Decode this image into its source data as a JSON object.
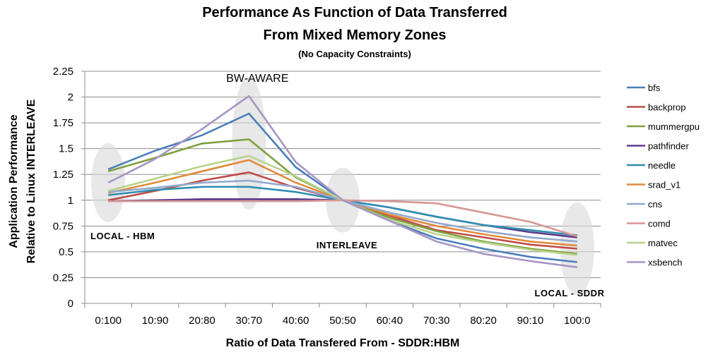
{
  "chart_data": {
    "type": "line",
    "title": "Performance As Function of Data Transferred",
    "title_line2": "From Mixed Memory Zones",
    "subtitle": "(No Capacity Constraints)",
    "ylabel": "Application Performance",
    "ylabel_line2": "Relative to Linux INTERLEAVE",
    "xlabel": "Ratio of Data Transfered From - SDDR:HBM",
    "ylim": [
      0,
      2.25
    ],
    "yticks": [
      0,
      0.25,
      0.5,
      0.75,
      1,
      1.25,
      1.5,
      1.75,
      2,
      2.25
    ],
    "ytick_labels": [
      "0",
      "0.25",
      "0.5",
      "0.75",
      "1",
      "1.25",
      "1.5",
      "1.75",
      "2",
      "2.25"
    ],
    "categories": [
      "0:100",
      "10:90",
      "20:80",
      "30:70",
      "40:60",
      "50:50",
      "60:40",
      "70:30",
      "80:20",
      "90:10",
      "100:0"
    ],
    "grid": true,
    "legend_position": "right",
    "series": [
      {
        "name": "bfs",
        "color": "#4a7ebb",
        "values": [
          1.3,
          1.48,
          1.63,
          1.84,
          1.32,
          1.0,
          0.8,
          0.63,
          0.53,
          0.45,
          0.4
        ]
      },
      {
        "name": "backprop",
        "color": "#be4b48",
        "values": [
          1.0,
          1.09,
          1.19,
          1.27,
          1.12,
          1.0,
          0.85,
          0.71,
          0.64,
          0.57,
          0.53
        ]
      },
      {
        "name": "mummergpu",
        "color": "#7f9f3e",
        "values": [
          1.28,
          1.41,
          1.55,
          1.59,
          1.22,
          1.0,
          0.83,
          0.7,
          0.6,
          0.53,
          0.48
        ]
      },
      {
        "name": "pathfinder",
        "color": "#5e3b8c",
        "values": [
          0.99,
          1.0,
          1.01,
          1.01,
          1.01,
          1.0,
          0.93,
          0.84,
          0.76,
          0.69,
          0.64
        ]
      },
      {
        "name": "needle",
        "color": "#2f8fb0",
        "values": [
          1.05,
          1.1,
          1.13,
          1.13,
          1.08,
          1.0,
          0.93,
          0.84,
          0.76,
          0.71,
          0.66
        ]
      },
      {
        "name": "srad_v1",
        "color": "#e28a3c",
        "values": [
          1.07,
          1.17,
          1.28,
          1.39,
          1.17,
          1.0,
          0.86,
          0.75,
          0.67,
          0.6,
          0.56
        ]
      },
      {
        "name": "cns",
        "color": "#93a9cf",
        "values": [
          1.08,
          1.12,
          1.17,
          1.19,
          1.13,
          1.0,
          0.88,
          0.78,
          0.7,
          0.64,
          0.6
        ]
      },
      {
        "name": "comd",
        "color": "#d99694",
        "values": [
          0.99,
          0.99,
          0.99,
          0.99,
          0.99,
          1.0,
          0.99,
          0.97,
          0.88,
          0.79,
          0.65
        ]
      },
      {
        "name": "matvec",
        "color": "#b8d38c",
        "values": [
          1.09,
          1.21,
          1.33,
          1.43,
          1.23,
          1.0,
          0.81,
          0.67,
          0.59,
          0.52,
          0.47
        ]
      },
      {
        "name": "xsbench",
        "color": "#a596c3",
        "values": [
          1.17,
          1.4,
          1.69,
          2.01,
          1.37,
          1.0,
          0.8,
          0.6,
          0.48,
          0.41,
          0.35
        ]
      }
    ],
    "annotations": [
      {
        "text": "BW-AWARE",
        "category": "30:70"
      },
      {
        "text": "LOCAL - HBM",
        "category": "0:100"
      },
      {
        "text": "INTERLEAVE",
        "category": "50:50"
      },
      {
        "text": "LOCAL - SDDR",
        "category": "100:0"
      }
    ]
  }
}
